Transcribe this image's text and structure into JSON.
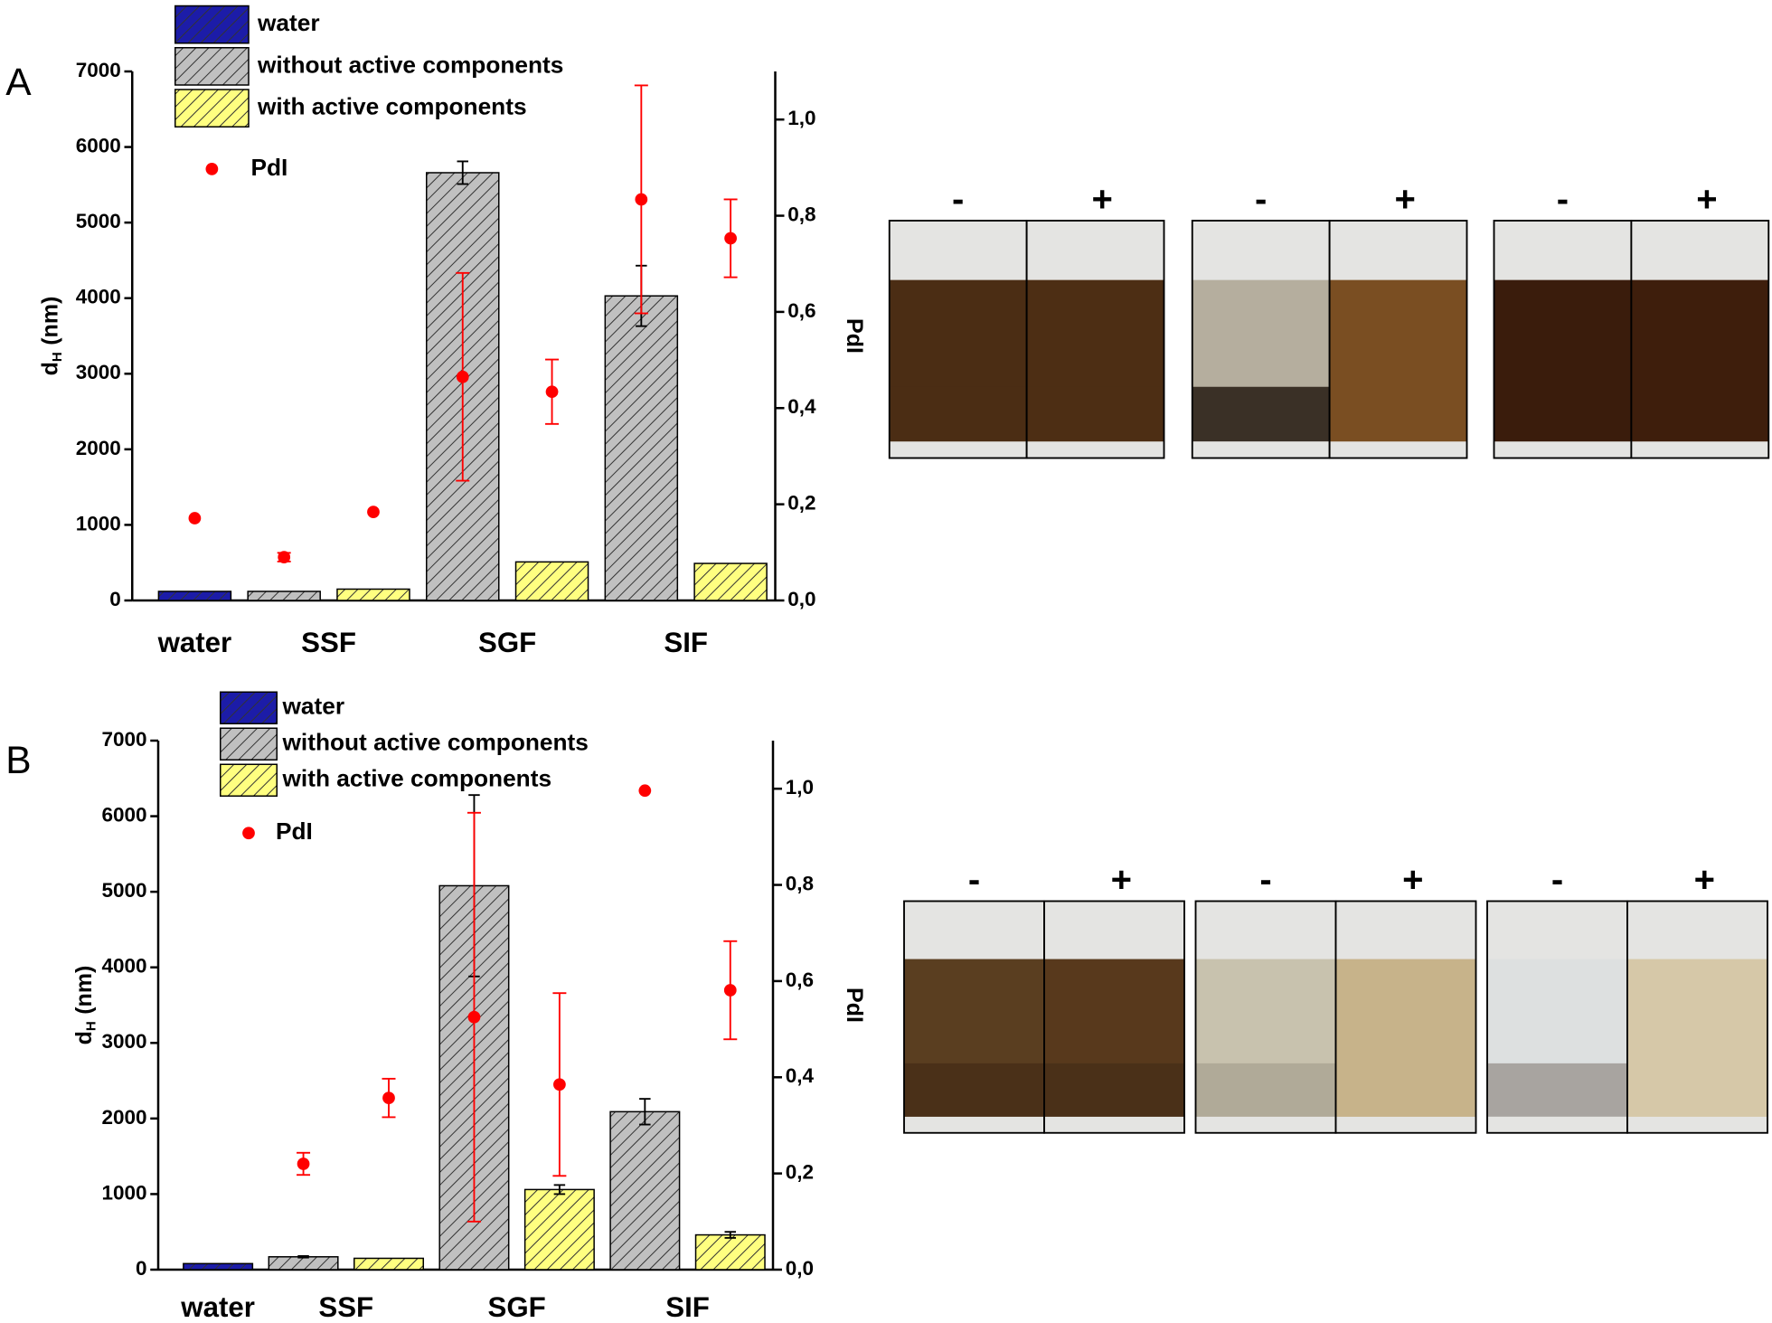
{
  "chart_data": [
    {
      "type": "bar",
      "panel": "A",
      "ylabel": {
        "main": "d",
        "sub": "H",
        "unit": "(nm)"
      },
      "y2label": "PdI",
      "categories": [
        "water",
        "SSF",
        "SGF",
        "SIF"
      ],
      "series": [
        {
          "name": "water",
          "color": "#1c1ca8",
          "values": [
            120,
            null,
            null,
            null
          ],
          "errors": [
            null,
            null,
            null,
            null
          ]
        },
        {
          "name": "without active components",
          "color": "#c0c0c0",
          "values": [
            null,
            120,
            5660,
            4030
          ],
          "errors": [
            null,
            null,
            150,
            400
          ]
        },
        {
          "name": "with active components",
          "color": "#ffff80",
          "values": [
            null,
            150,
            510,
            490
          ],
          "errors": [
            null,
            null,
            null,
            null
          ]
        },
        {
          "name": "PdI",
          "type": "scatter",
          "axis": "y2",
          "color": "#ff0000",
          "values": [
            [
              0.171,
              null,
              null
            ],
            [
              null,
              0.09,
              0.184
            ],
            [
              null,
              0.465,
              0.434
            ],
            [
              null,
              0.834,
              0.753
            ]
          ],
          "errors": [
            [
              null,
              null,
              null
            ],
            [
              null,
              0.009,
              null
            ],
            [
              null,
              0.216,
              0.067
            ],
            [
              null,
              0.237,
              0.081
            ]
          ]
        }
      ],
      "ylim": [
        0,
        7000
      ],
      "yticks": [
        0,
        1000,
        2000,
        3000,
        4000,
        5000,
        6000,
        7000
      ],
      "y2lim": [
        0,
        1.1
      ],
      "y2ticks": [
        {
          "value": 0,
          "label": "0,0"
        },
        {
          "value": 0.2,
          "label": "0,2"
        },
        {
          "value": 0.4,
          "label": "0,4"
        },
        {
          "value": 0.6,
          "label": "0,6"
        },
        {
          "value": 0.8,
          "label": "0,8"
        },
        {
          "value": 1.0,
          "label": "1,0"
        }
      ],
      "photo_groups": [
        [
          "-",
          "+"
        ],
        [
          "-",
          "+"
        ],
        [
          "-",
          "+"
        ]
      ]
    },
    {
      "type": "bar",
      "panel": "B",
      "ylabel": {
        "main": "d",
        "sub": "H",
        "unit": "(nm)"
      },
      "y2label": "PdI",
      "categories": [
        "water",
        "SSF",
        "SGF",
        "SIF"
      ],
      "series": [
        {
          "name": "water",
          "color": "#1c1ca8",
          "values": [
            80,
            null,
            null,
            null
          ],
          "errors": [
            null,
            null,
            null,
            null
          ]
        },
        {
          "name": "without active components",
          "color": "#c0c0c0",
          "values": [
            null,
            170,
            5080,
            2090
          ],
          "errors": [
            null,
            10,
            1200,
            170
          ]
        },
        {
          "name": "with active components",
          "color": "#ffff80",
          "values": [
            null,
            150,
            1060,
            460
          ],
          "errors": [
            null,
            null,
            60,
            40
          ]
        },
        {
          "name": "PdI",
          "type": "scatter",
          "axis": "y2",
          "color": "#ff0000",
          "values": [
            [
              null,
              null,
              null
            ],
            [
              null,
              0.22,
              0.357
            ],
            [
              null,
              0.525,
              0.385
            ],
            [
              null,
              0.996,
              0.581
            ]
          ],
          "errors": [
            [
              null,
              null,
              null
            ],
            [
              null,
              0.023,
              0.04
            ],
            [
              null,
              0.425,
              0.19
            ],
            [
              null,
              null,
              0.102
            ]
          ]
        }
      ],
      "ylim": [
        0,
        7000
      ],
      "yticks": [
        0,
        1000,
        2000,
        3000,
        4000,
        5000,
        6000,
        7000
      ],
      "y2lim": [
        0,
        1.1
      ],
      "y2ticks": [
        {
          "value": 0,
          "label": "0,0"
        },
        {
          "value": 0.2,
          "label": "0,2"
        },
        {
          "value": 0.4,
          "label": "0,4"
        },
        {
          "value": 0.6,
          "label": "0,6"
        },
        {
          "value": 0.8,
          "label": "0,8"
        },
        {
          "value": 1.0,
          "label": "1,0"
        }
      ],
      "photo_groups": [
        [
          "-",
          "+"
        ],
        [
          "-",
          "+"
        ],
        [
          "-",
          "+"
        ]
      ]
    }
  ]
}
